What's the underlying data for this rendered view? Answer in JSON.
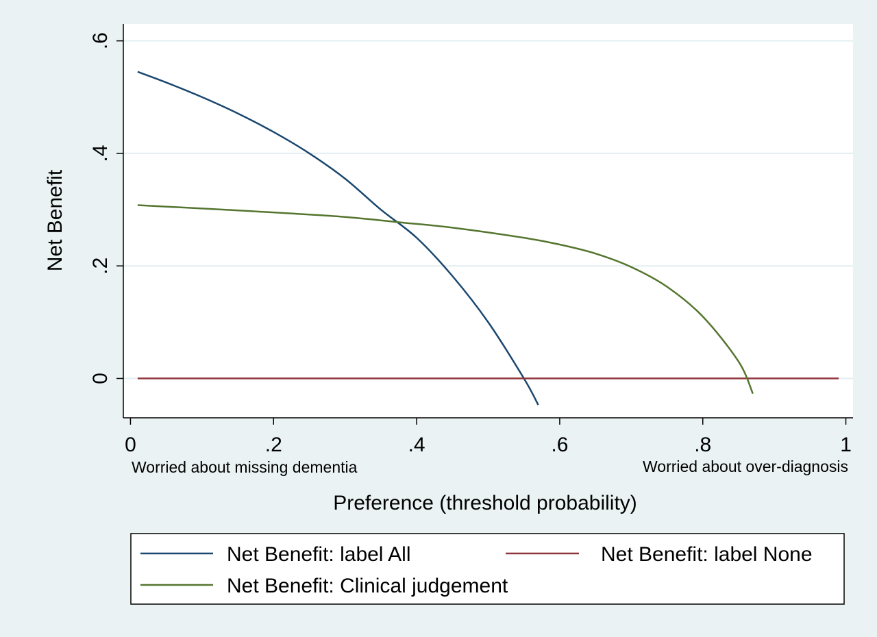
{
  "chart_data": {
    "type": "line",
    "xlabel": "Preference (threshold probability)",
    "ylabel": "Net Benefit",
    "xlim": [
      -0.01,
      1.01
    ],
    "ylim": [
      -0.07,
      0.63
    ],
    "x_ticks": [
      0,
      0.2,
      0.4,
      0.6,
      0.8,
      1
    ],
    "x_tick_labels": [
      "0",
      ".2",
      ".4",
      ".6",
      ".8",
      "1"
    ],
    "y_ticks": [
      0,
      0.2,
      0.4,
      0.6
    ],
    "y_tick_labels": [
      "0",
      ".2",
      ".4",
      ".6"
    ],
    "grid": true,
    "x_annotations": {
      "left": "Worried about missing dementia",
      "right": "Worried about over-diagnosis"
    },
    "legend_position": "bottom",
    "series": [
      {
        "name": "Net Benefit: label All",
        "color": "#1a476f",
        "x": [
          0.01,
          0.05,
          0.1,
          0.15,
          0.2,
          0.25,
          0.3,
          0.35,
          0.4,
          0.45,
          0.5,
          0.55,
          0.57
        ],
        "y": [
          0.545,
          0.526,
          0.5,
          0.471,
          0.438,
          0.4,
          0.355,
          0.3,
          0.25,
          0.182,
          0.1,
          0.0,
          -0.047
        ]
      },
      {
        "name": "Net Benefit: label None",
        "color": "#90353b",
        "x": [
          0.01,
          0.99
        ],
        "y": [
          0,
          0
        ]
      },
      {
        "name": "Net Benefit: Clinical judgement",
        "color": "#55752f",
        "x": [
          0.01,
          0.1,
          0.2,
          0.3,
          0.38,
          0.45,
          0.55,
          0.6,
          0.65,
          0.7,
          0.75,
          0.8,
          0.85,
          0.87
        ],
        "y": [
          0.308,
          0.302,
          0.295,
          0.287,
          0.277,
          0.268,
          0.25,
          0.238,
          0.222,
          0.198,
          0.163,
          0.11,
          0.03,
          -0.027
        ]
      }
    ]
  }
}
